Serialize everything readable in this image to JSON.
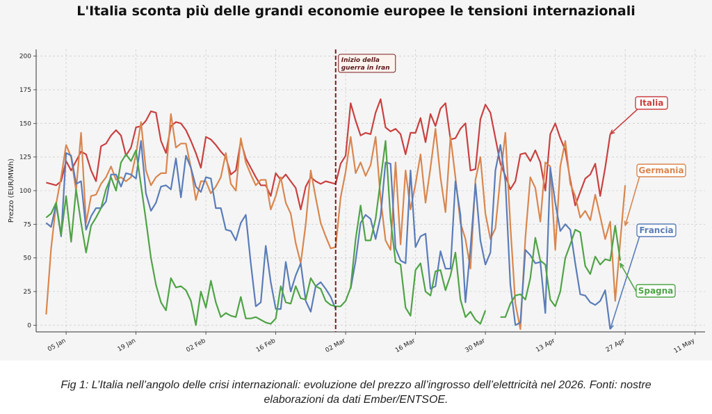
{
  "chart_data": {
    "type": "line",
    "title": "L'Italia sconta più delle grandi economie europee le tensioni internazionali",
    "ylabel": "Prezzo (EUR/MWh)",
    "xlabel": "",
    "ylim": [
      -5,
      205
    ],
    "xlim": [
      "2025-12-30",
      "2026-05-13"
    ],
    "yticks": [
      0,
      25,
      50,
      75,
      100,
      125,
      150,
      175,
      200
    ],
    "xticks": [
      {
        "date": "2026-01-05",
        "label": "05 Jan"
      },
      {
        "date": "2026-01-19",
        "label": "19 Jan"
      },
      {
        "date": "2026-02-02",
        "label": "02 Feb"
      },
      {
        "date": "2026-02-16",
        "label": "16 Feb"
      },
      {
        "date": "2026-03-02",
        "label": "02 Mar"
      },
      {
        "date": "2026-03-16",
        "label": "16 Mar"
      },
      {
        "date": "2026-03-30",
        "label": "30 Mar"
      },
      {
        "date": "2026-04-13",
        "label": "13 Apr"
      },
      {
        "date": "2026-04-27",
        "label": "27 Apr"
      },
      {
        "date": "2026-05-11",
        "label": "11 May"
      }
    ],
    "grid": true,
    "start_date": "2026-01-01",
    "event": {
      "date": "2026-02-28",
      "text_lines": [
        "Inizio della",
        "guerra in Iran"
      ]
    },
    "series": [
      {
        "name": "Italia",
        "color": "#c94040",
        "label_anchor_value": 142,
        "values": [
          106,
          105,
          104,
          107,
          122,
          115,
          122,
          129,
          127,
          115,
          107,
          133,
          135,
          141,
          145,
          141,
          126,
          132,
          147,
          148,
          152,
          159,
          158,
          137,
          128,
          148,
          151,
          150,
          145,
          137,
          128,
          117,
          140,
          138,
          134,
          129,
          125,
          112,
          115,
          137,
          124,
          117,
          110,
          104,
          104,
          96,
          113,
          108,
          112,
          107,
          102,
          86,
          103,
          110,
          107,
          105,
          107,
          106,
          105,
          120,
          126,
          165,
          152,
          141,
          143,
          142,
          158,
          168,
          147,
          144,
          146,
          142,
          127,
          143,
          143,
          154,
          136,
          157,
          148,
          161,
          165,
          138,
          139,
          146,
          150,
          115,
          116,
          153,
          164,
          158,
          139,
          120,
          111,
          101,
          107,
          127,
          128,
          122,
          130,
          121,
          100,
          142,
          150,
          139,
          130,
          108,
          89,
          99,
          109,
          112,
          120,
          96,
          117,
          142
        ]
      },
      {
        "name": "Germania",
        "color": "#d9864e",
        "label_anchor_value": 74,
        "values": [
          8,
          57,
          90,
          110,
          134,
          125,
          100,
          143,
          76,
          96,
          97,
          105,
          110,
          118,
          108,
          110,
          107,
          110,
          127,
          151,
          115,
          104,
          110,
          113,
          113,
          157,
          132,
          135,
          135,
          117,
          93,
          107,
          107,
          98,
          103,
          110,
          128,
          105,
          100,
          139,
          121,
          112,
          104,
          108,
          108,
          86,
          96,
          110,
          91,
          83,
          61,
          46,
          75,
          115,
          95,
          76,
          66,
          57,
          58,
          95,
          114,
          140,
          113,
          121,
          111,
          119,
          140,
          94,
          63,
          56,
          121,
          60,
          115,
          86,
          105,
          127,
          91,
          117,
          146,
          110,
          84,
          140,
          110,
          76,
          64,
          42,
          108,
          125,
          83,
          64,
          72,
          110,
          143,
          74,
          16,
          -3,
          65,
          110,
          102,
          77,
          121,
          118,
          56,
          118,
          137,
          105,
          96,
          80,
          85,
          78,
          97,
          81,
          64,
          77,
          18,
          62,
          104
        ]
      },
      {
        "name": "Francia",
        "color": "#5a7cb8",
        "label_anchor_value": -3,
        "values": [
          76,
          73,
          90,
          66,
          128,
          126,
          105,
          107,
          71,
          81,
          87,
          87,
          92,
          112,
          112,
          103,
          113,
          112,
          109,
          137,
          98,
          85,
          91,
          103,
          104,
          101,
          124,
          95,
          126,
          117,
          103,
          99,
          110,
          109,
          87,
          87,
          71,
          70,
          63,
          76,
          82,
          46,
          14,
          17,
          59,
          32,
          12,
          12,
          47,
          25,
          37,
          46,
          18,
          10,
          29,
          32,
          27,
          21,
          12,
          null,
          null,
          27,
          48,
          76,
          82,
          79,
          64,
          81,
          121,
          120,
          57,
          48,
          46,
          115,
          58,
          66,
          68,
          27,
          29,
          55,
          42,
          42,
          107,
          82,
          17,
          57,
          105,
          63,
          45,
          54,
          115,
          134,
          107,
          30,
          0,
          2,
          56,
          52,
          46,
          47,
          9,
          117,
          91,
          70,
          75,
          71,
          46,
          23,
          22,
          17,
          15,
          18,
          26,
          -3
        ]
      },
      {
        "name": "Spagna",
        "color": "#4fa346",
        "label_anchor_value": 46,
        "values": [
          80,
          83,
          91,
          67,
          96,
          62,
          101,
          76,
          54,
          74,
          80,
          87,
          101,
          110,
          100,
          121,
          127,
          122,
          130,
          104,
          78,
          50,
          30,
          17,
          11,
          35,
          28,
          29,
          26,
          18,
          0,
          25,
          13,
          33,
          17,
          6,
          9,
          7,
          6,
          21,
          5,
          5,
          6,
          4,
          2,
          1,
          5,
          29,
          17,
          16,
          29,
          20,
          19,
          35,
          29,
          27,
          18,
          15,
          14,
          14,
          18,
          28,
          64,
          89,
          63,
          63,
          79,
          108,
          137,
          79,
          47,
          45,
          13,
          7,
          41,
          46,
          25,
          22,
          40,
          41,
          26,
          37,
          54,
          19,
          6,
          10,
          4,
          1,
          11,
          null,
          null,
          6,
          6,
          16,
          22,
          23,
          19,
          35,
          65,
          48,
          45,
          19,
          14,
          25,
          50,
          60,
          71,
          69,
          44,
          38,
          51,
          45,
          49,
          48,
          74,
          48
        ]
      }
    ]
  },
  "caption": {
    "line1": "Fig 1: L’Italia nell’angolo delle crisi internazionali: evoluzione del prezzo all’ingrosso dell’elettricità nel 2026. Fonti: nostre",
    "line2": "elaborazioni da dati Ember/ENTSOE."
  }
}
